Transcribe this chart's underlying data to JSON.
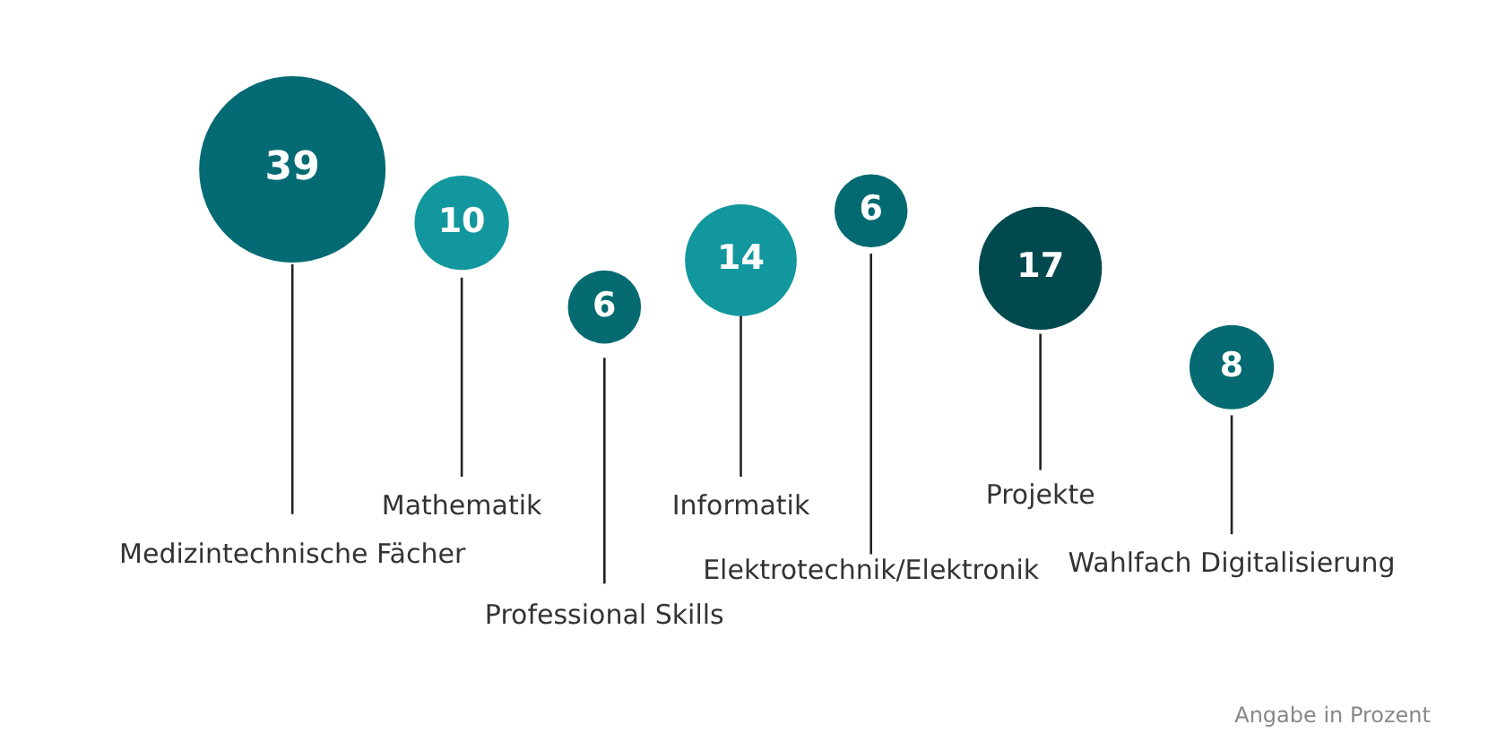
{
  "chart_data": {
    "type": "other",
    "categories": [
      "Medizintechnische Fächer",
      "Mathematik",
      "Professional Skills",
      "Informatik",
      "Elektrotechnik/Elektronik",
      "Projekte",
      "Wahlfach Digitalisierung"
    ],
    "values": [
      39,
      10,
      6,
      14,
      6,
      17,
      8
    ],
    "colors": [
      "#046a73",
      "#12979e",
      "#056b71",
      "#11979d",
      "#046a71",
      "#004a4f",
      "#056a72"
    ],
    "data_labels": true,
    "annotations": [
      "Angabe in Prozent"
    ]
  }
}
